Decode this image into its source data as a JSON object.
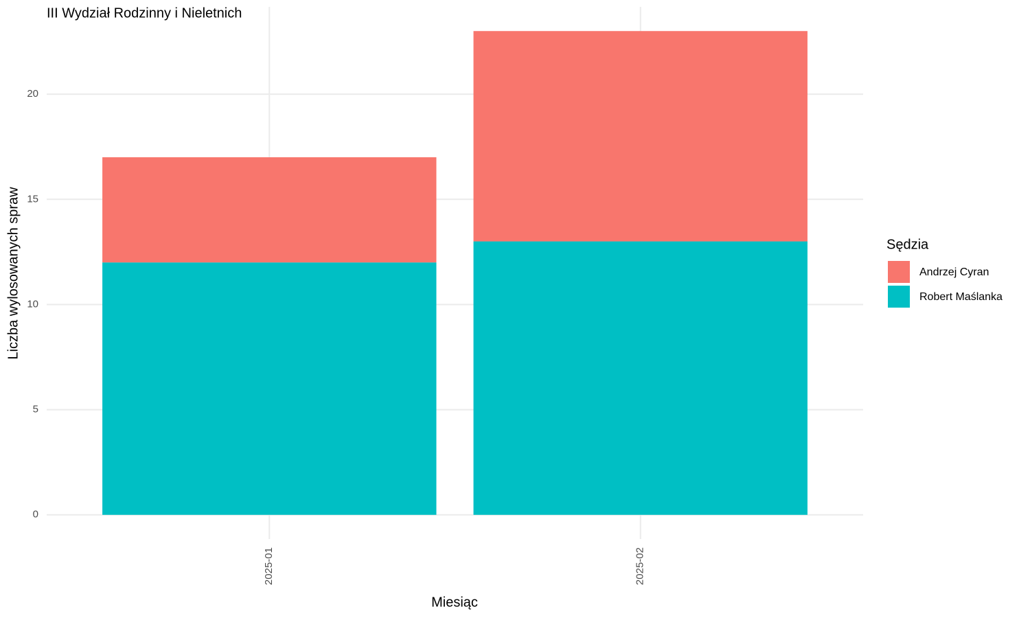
{
  "chart_data": {
    "type": "stacked_bar",
    "title": "III Wydział Rodzinny i Nieletnich",
    "x_label": "Miesiąc",
    "y_label": "Liczba wylosowanych spraw",
    "legend_title": "Sędzia",
    "categories": [
      "2025-01",
      "2025-02"
    ],
    "series": [
      {
        "name": "Andrzej Cyran",
        "color": "#f8766d",
        "values": [
          5,
          10
        ]
      },
      {
        "name": "Robert Maślanka",
        "color": "#00bfc4",
        "values": [
          12,
          13
        ]
      }
    ],
    "ylim": [
      -1.15,
      24.15
    ],
    "yticks": [
      0,
      5,
      10,
      15,
      20
    ],
    "grid": true,
    "legend": "right"
  }
}
